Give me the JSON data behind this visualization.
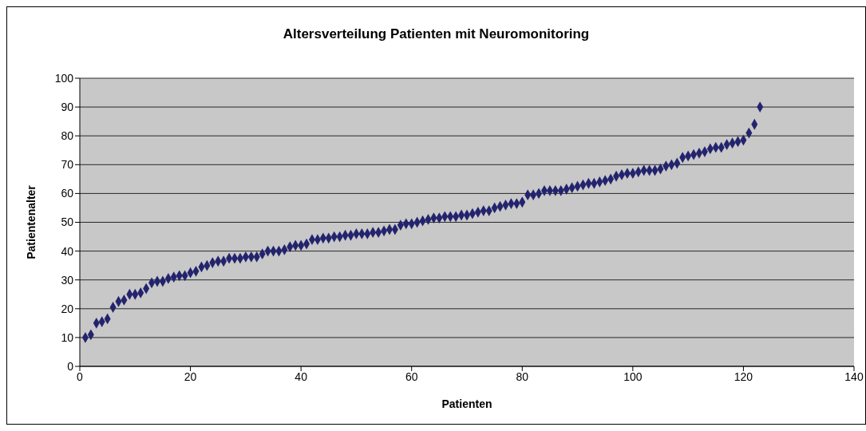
{
  "chart_data": {
    "type": "scatter",
    "title": "Altersverteilung Patienten mit Neuromonitoring",
    "xlabel": "Patienten",
    "ylabel": "Patientenalter",
    "x": [
      1,
      2,
      3,
      4,
      5,
      6,
      7,
      8,
      9,
      10,
      11,
      12,
      13,
      14,
      15,
      16,
      17,
      18,
      19,
      20,
      21,
      22,
      23,
      24,
      25,
      26,
      27,
      28,
      29,
      30,
      31,
      32,
      33,
      34,
      35,
      36,
      37,
      38,
      39,
      40,
      41,
      42,
      43,
      44,
      45,
      46,
      47,
      48,
      49,
      50,
      51,
      52,
      53,
      54,
      55,
      56,
      57,
      58,
      59,
      60,
      61,
      62,
      63,
      64,
      65,
      66,
      67,
      68,
      69,
      70,
      71,
      72,
      73,
      74,
      75,
      76,
      77,
      78,
      79,
      80,
      81,
      82,
      83,
      84,
      85,
      86,
      87,
      88,
      89,
      90,
      91,
      92,
      93,
      94,
      95,
      96,
      97,
      98,
      99,
      100,
      101,
      102,
      103,
      104,
      105,
      106,
      107,
      108,
      109,
      110,
      111,
      112,
      113,
      114,
      115,
      116,
      117,
      118,
      119,
      120,
      121,
      122,
      123
    ],
    "series": [
      {
        "color": "#23236e",
        "values": [
          10,
          11,
          15,
          15.5,
          16.5,
          20.5,
          22.5,
          23,
          25,
          25,
          25.5,
          27,
          29,
          29.5,
          29.5,
          30.5,
          31,
          31.5,
          31.5,
          32.5,
          33,
          34.5,
          35,
          36,
          36.5,
          36.5,
          37.5,
          37.5,
          37.5,
          38,
          38,
          38,
          39,
          40,
          40,
          40,
          40.5,
          41.5,
          42,
          42,
          42.5,
          44,
          44,
          44.5,
          44.5,
          45,
          45,
          45.5,
          45.5,
          46,
          46,
          46,
          46.5,
          46.5,
          47,
          47.5,
          47.5,
          49,
          49.5,
          49.5,
          50,
          50.5,
          51,
          51.5,
          51.5,
          52,
          52,
          52,
          52.5,
          52.5,
          53,
          53.5,
          54,
          54,
          55,
          55.5,
          56,
          56.5,
          56.5,
          57,
          59.5,
          59.5,
          60,
          61,
          61,
          61,
          61,
          61.5,
          62,
          62.5,
          63,
          63.5,
          63.5,
          64,
          64.5,
          65,
          66,
          66.5,
          67,
          67,
          67.5,
          68,
          68,
          68,
          68.5,
          69.5,
          70,
          70.5,
          72.5,
          73,
          73.5,
          74,
          74.5,
          75.5,
          76,
          76,
          77,
          77.5,
          78,
          78.5,
          81,
          84,
          90
        ]
      }
    ],
    "xlim": [
      0,
      140
    ],
    "xticks": [
      0,
      20,
      40,
      60,
      80,
      100,
      120,
      140
    ],
    "ylim": [
      0,
      100
    ],
    "yticks": [
      0,
      10,
      20,
      30,
      40,
      50,
      60,
      70,
      80,
      90,
      100
    ],
    "grid": "y",
    "marker": "diamond"
  }
}
